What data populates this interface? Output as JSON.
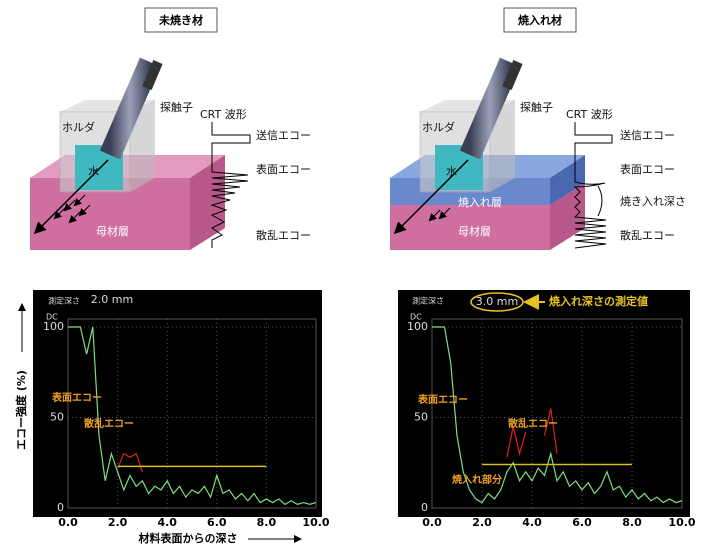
{
  "diagrams": [
    {
      "title": "未焼き材",
      "holder": "ホルダ",
      "water": "水",
      "probe": "探触子",
      "crt": "CRT 波形",
      "echo_send": "送信エコー",
      "echo_surface": "表面エコー",
      "echo_scatter": "散乱エコー",
      "base_layer": "母材層"
    },
    {
      "title": "焼入れ材",
      "holder": "ホルダ",
      "water": "水",
      "probe": "探触子",
      "crt": "CRT 波形",
      "echo_send": "送信エコー",
      "echo_surface": "表面エコー",
      "hardened_depth": "焼き入れ深さ",
      "echo_scatter": "散乱エコー",
      "hardened_layer": "焼入れ層",
      "base_layer": "母材層"
    }
  ],
  "chart_data": [
    {
      "type": "line",
      "ylabel": "エコー強度 (%)",
      "xlabel": "材料表面からの深さ",
      "corner_label": "DC",
      "depth_label": "測定深さ",
      "depth_value": "2.0 mm",
      "xlim": [
        0,
        10
      ],
      "ylim": [
        0,
        100
      ],
      "xticks": [
        {
          "value": 0,
          "label": "0.0"
        },
        {
          "value": 2,
          "label": "2.0"
        },
        {
          "value": 4,
          "label": "4.0"
        },
        {
          "value": 6,
          "label": "6.0"
        },
        {
          "value": 8,
          "label": "8.0"
        },
        {
          "value": 10,
          "label": "10.0"
        }
      ],
      "yticks": [
        0,
        50,
        100
      ],
      "grid": true,
      "gate_x": [
        2,
        8
      ],
      "gate_y": 23,
      "gate_color": "#d4c020",
      "annotations": [
        "表面エコー",
        "散乱エコー"
      ],
      "series": [
        {
          "color": "#7fe07f",
          "x": [
            0,
            0.25,
            0.5,
            0.75,
            1,
            1.25,
            1.5,
            1.75,
            2,
            2.25,
            2.5,
            2.75,
            3,
            3.25,
            3.5,
            3.75,
            4,
            4.25,
            4.5,
            4.75,
            5,
            5.25,
            5.5,
            5.75,
            6,
            6.25,
            6.5,
            6.75,
            7,
            7.25,
            7.5,
            7.75,
            8,
            8.25,
            8.5,
            8.75,
            9,
            9.25,
            9.5,
            9.75,
            10
          ],
          "values": [
            100,
            100,
            100,
            85,
            100,
            40,
            15,
            30,
            20,
            10,
            18,
            12,
            15,
            8,
            12,
            10,
            15,
            8,
            12,
            6,
            10,
            8,
            12,
            6,
            18,
            8,
            10,
            5,
            8,
            4,
            8,
            3,
            5,
            3,
            5,
            2,
            4,
            2,
            3,
            2,
            3
          ]
        },
        {
          "color": "#e02020",
          "x": [
            2,
            2.25,
            2.5,
            2.75,
            3
          ],
          "values": [
            22,
            30,
            28,
            30,
            20
          ]
        }
      ]
    },
    {
      "type": "line",
      "corner_label": "DC",
      "depth_label": "測定深さ",
      "depth_value": "3.0 mm",
      "depth_note": "焼入れ深さの測定値",
      "xlim": [
        0,
        10
      ],
      "ylim": [
        0,
        100
      ],
      "xticks": [
        {
          "value": 0,
          "label": "0.0"
        },
        {
          "value": 2,
          "label": "2.0"
        },
        {
          "value": 4,
          "label": "4.0"
        },
        {
          "value": 6,
          "label": "6.0"
        },
        {
          "value": 8,
          "label": "8.0"
        },
        {
          "value": 10,
          "label": "10.0"
        }
      ],
      "yticks": [
        0,
        50,
        100
      ],
      "grid": true,
      "gate_x": [
        2,
        8
      ],
      "gate_y": 24,
      "gate_color": "#d4c020",
      "annotations": [
        "表面エコー",
        "散乱エコー",
        "焼入れ部分"
      ],
      "series": [
        {
          "color": "#7fe07f",
          "x": [
            0,
            0.25,
            0.5,
            0.75,
            1,
            1.25,
            1.5,
            1.75,
            2,
            2.25,
            2.5,
            2.75,
            3,
            3.25,
            3.5,
            3.75,
            4,
            4.25,
            4.5,
            4.75,
            5,
            5.25,
            5.5,
            5.75,
            6,
            6.25,
            6.5,
            6.75,
            7,
            7.25,
            7.5,
            7.75,
            8,
            8.25,
            8.5,
            8.75,
            9,
            9.25,
            9.5,
            9.75,
            10
          ],
          "values": [
            100,
            100,
            100,
            80,
            40,
            20,
            10,
            5,
            3,
            8,
            5,
            10,
            20,
            25,
            15,
            20,
            15,
            22,
            18,
            30,
            15,
            20,
            12,
            15,
            10,
            14,
            8,
            12,
            20,
            10,
            12,
            6,
            10,
            5,
            8,
            4,
            6,
            3,
            5,
            3,
            4
          ]
        },
        {
          "color": "#e02020",
          "x": [
            3,
            3.25,
            3.5,
            3.75,
            4,
            4.5,
            4.75,
            5
          ],
          "values": [
            28,
            45,
            30,
            42,
            null,
            40,
            55,
            30
          ]
        }
      ]
    }
  ]
}
